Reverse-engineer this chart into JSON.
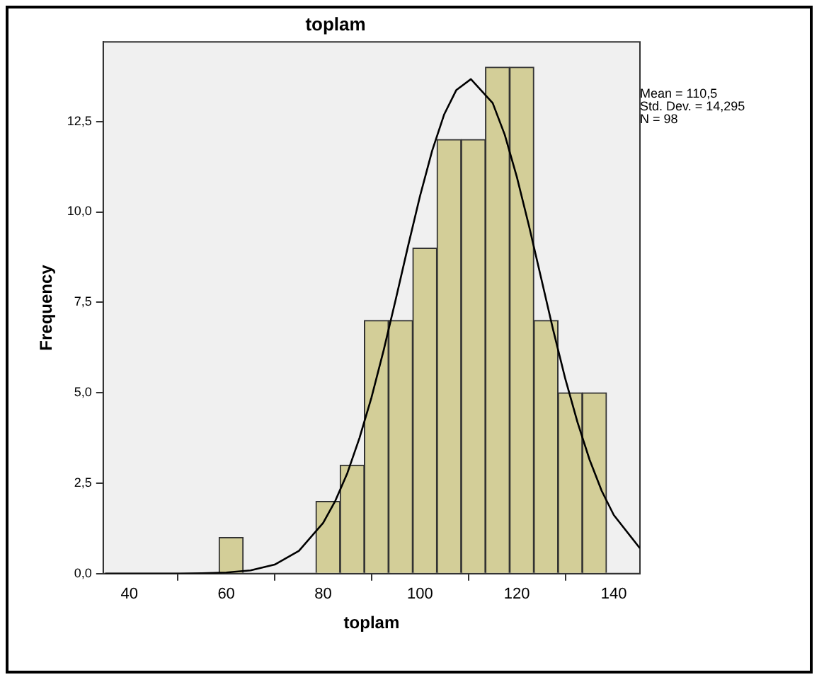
{
  "chart_data": {
    "type": "histogram",
    "title": "toplam",
    "xlabel": "toplam",
    "ylabel": "Frequency",
    "annotations": [
      "Mean = 110,5",
      "Std. Dev. = 14,295",
      "N = 98"
    ],
    "bins": [
      58.5,
      63.5,
      68.5,
      73.5,
      78.5,
      83.5,
      88.5,
      93.5,
      98.5,
      103.5,
      108.5,
      113.5,
      118.5,
      123.5,
      128.5,
      133.5,
      138.5
    ],
    "values": [
      1,
      0,
      0,
      0,
      2,
      3,
      7,
      7,
      9,
      12,
      12,
      14,
      14,
      7,
      5,
      5
    ],
    "color": "#d3ce98",
    "series": [
      {
        "type": "line",
        "color": "#000000",
        "x": [
          35,
          50,
          55,
          60,
          65,
          70,
          75,
          80,
          82.5,
          85,
          87.5,
          90,
          92.5,
          95,
          97.5,
          100,
          102.5,
          105,
          107.5,
          110.5,
          115,
          117.5,
          120,
          122.5,
          125,
          127.5,
          130,
          132.5,
          135,
          137.5,
          140,
          145.4
        ],
        "values": [
          0,
          0,
          0.01,
          0.03,
          0.09,
          0.25,
          0.63,
          1.4,
          2.01,
          2.78,
          3.75,
          4.88,
          6.18,
          7.59,
          9.04,
          10.44,
          11.69,
          12.7,
          13.37,
          13.67,
          13.01,
          12.13,
          10.96,
          9.61,
          8.17,
          6.73,
          5.38,
          4.19,
          3.15,
          2.29,
          1.62,
          0.7
        ]
      }
    ],
    "xlim": [
      34.6,
      145.4
    ],
    "xticks": [
      40,
      60,
      80,
      100,
      120,
      140
    ],
    "ylim": [
      0,
      14.7
    ],
    "yticks": [
      {
        "value": 0,
        "label": "0,0"
      },
      {
        "value": 2.5,
        "label": "2,5"
      },
      {
        "value": 5,
        "label": "5,0"
      },
      {
        "value": 7.5,
        "label": "7,5"
      },
      {
        "value": 10,
        "label": "10,0"
      },
      {
        "value": 12.5,
        "label": "12,5"
      }
    ],
    "grid": false,
    "legend": false,
    "marker": "none",
    "line_style": "solid"
  }
}
